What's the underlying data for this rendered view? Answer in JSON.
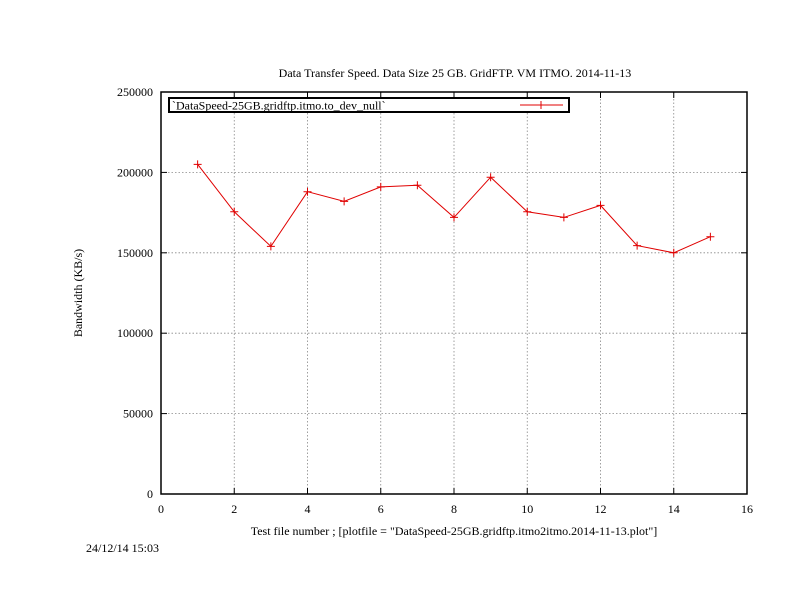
{
  "chart_data": {
    "type": "line",
    "title": "Data Transfer Speed. Data Size 25 GB. GridFTP. VM ITMO. 2014-11-13",
    "xlabel": "Test file number ; [plotfile = \"DataSpeed-25GB.gridftp.itmo2itmo.2014-11-13.plot\"]",
    "ylabel": "Bandwidth (KB/s)",
    "xlim": [
      0,
      16
    ],
    "ylim": [
      0,
      250000
    ],
    "x_ticks": [
      0,
      2,
      4,
      6,
      8,
      10,
      12,
      14,
      16
    ],
    "y_ticks": [
      0,
      50000,
      100000,
      150000,
      200000,
      250000
    ],
    "grid": true,
    "legend_position": "top-left",
    "series": [
      {
        "name": "`DataSpeed-25GB.gridftp.itmo.to_dev_null`",
        "color": "#e00000",
        "marker": "plus",
        "x": [
          1,
          2,
          3,
          4,
          5,
          6,
          7,
          8,
          9,
          10,
          11,
          12,
          13,
          14,
          15
        ],
        "y": [
          205000,
          175500,
          154000,
          188000,
          182000,
          191000,
          192000,
          172000,
          197000,
          175500,
          172000,
          179500,
          154500,
          150000,
          160000
        ]
      }
    ]
  },
  "footer": {
    "timestamp": "24/12/14 15:03"
  }
}
